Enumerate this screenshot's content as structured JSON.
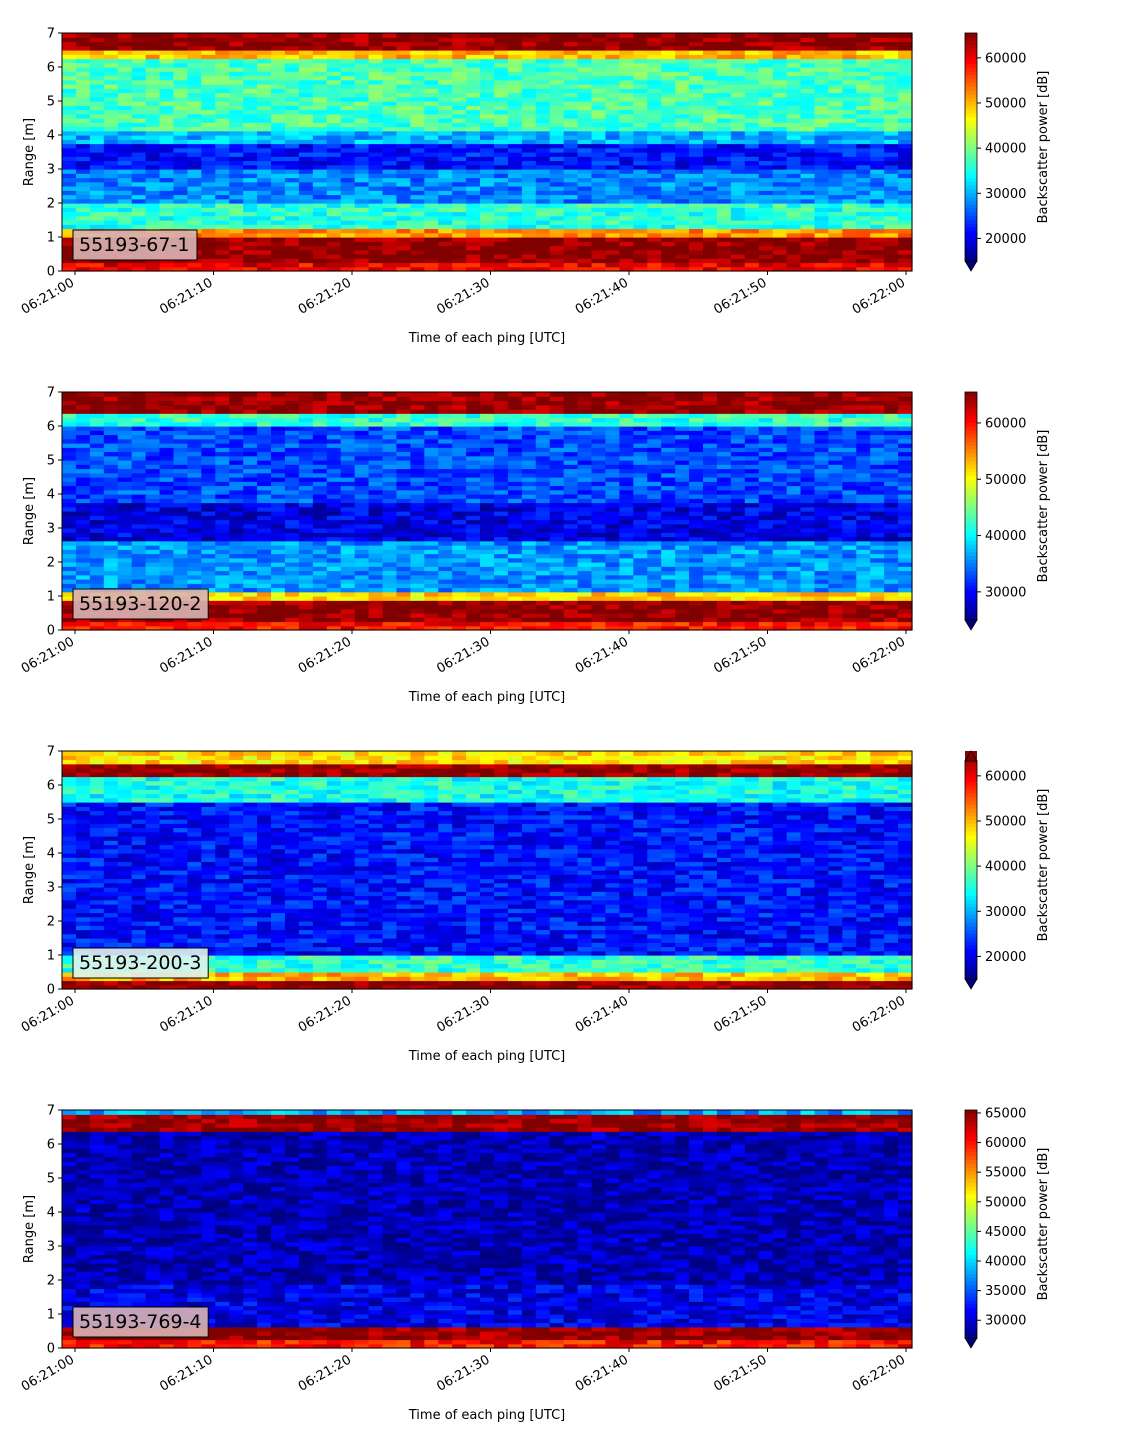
{
  "chart_data": [
    {
      "type": "heatmap",
      "label": "55193-67-1",
      "xlabel": "Time of each ping [UTC]",
      "ylabel": "Range [m]",
      "x_range": [
        "06:21:00",
        "06:22:00"
      ],
      "ylim": [
        0,
        7
      ],
      "x_ticks": [
        "06:21:00",
        "06:21:10",
        "06:21:20",
        "06:21:30",
        "06:21:40",
        "06:21:50",
        "06:22:00"
      ],
      "y_ticks": [
        "0",
        "1",
        "2",
        "3",
        "4",
        "5",
        "6",
        "7"
      ],
      "colorbar": {
        "label": "Backscatter power [dB]",
        "min": 15000,
        "max": 65500,
        "ticks": [
          "20000",
          "30000",
          "40000",
          "50000",
          "60000"
        ],
        "tick_values": [
          20000,
          30000,
          40000,
          50000,
          60000
        ],
        "extend": "min"
      },
      "range_profile": [
        {
          "from": 0.0,
          "to": 0.25,
          "value": 60000
        },
        {
          "from": 0.25,
          "to": 1.0,
          "value": 65000
        },
        {
          "from": 1.0,
          "to": 1.2,
          "value": 52000
        },
        {
          "from": 1.2,
          "to": 2.0,
          "value": 36000
        },
        {
          "from": 2.0,
          "to": 3.0,
          "value": 28000
        },
        {
          "from": 3.0,
          "to": 3.8,
          "value": 22000
        },
        {
          "from": 3.8,
          "to": 4.1,
          "value": 30000
        },
        {
          "from": 4.1,
          "to": 6.2,
          "value": 37500
        },
        {
          "from": 6.2,
          "to": 6.45,
          "value": 50000
        },
        {
          "from": 6.45,
          "to": 7.0,
          "value": 65000
        }
      ]
    },
    {
      "type": "heatmap",
      "label": "55193-120-2",
      "xlabel": "Time of each ping [UTC]",
      "ylabel": "Range [m]",
      "x_range": [
        "06:21:00",
        "06:22:00"
      ],
      "ylim": [
        0,
        7
      ],
      "x_ticks": [
        "06:21:00",
        "06:21:10",
        "06:21:20",
        "06:21:30",
        "06:21:40",
        "06:21:50",
        "06:22:00"
      ],
      "y_ticks": [
        "0",
        "1",
        "2",
        "3",
        "4",
        "5",
        "6",
        "7"
      ],
      "colorbar": {
        "label": "Backscatter power [dB]",
        "min": 25000,
        "max": 65500,
        "ticks": [
          "30000",
          "40000",
          "50000",
          "60000"
        ],
        "tick_values": [
          30000,
          40000,
          50000,
          60000
        ],
        "extend": "min"
      },
      "range_profile": [
        {
          "from": 0.0,
          "to": 0.25,
          "value": 60000
        },
        {
          "from": 0.25,
          "to": 0.85,
          "value": 65000
        },
        {
          "from": 0.85,
          "to": 1.1,
          "value": 52000
        },
        {
          "from": 1.1,
          "to": 2.6,
          "value": 36000
        },
        {
          "from": 2.6,
          "to": 3.8,
          "value": 29000
        },
        {
          "from": 3.8,
          "to": 6.0,
          "value": 33000
        },
        {
          "from": 6.0,
          "to": 6.4,
          "value": 42000
        },
        {
          "from": 6.4,
          "to": 7.0,
          "value": 65000
        }
      ]
    },
    {
      "type": "heatmap",
      "label": "55193-200-3",
      "xlabel": "Time of each ping [UTC]",
      "ylabel": "Range [m]",
      "x_range": [
        "06:21:00",
        "06:22:00"
      ],
      "ylim": [
        0,
        7
      ],
      "x_ticks": [
        "06:21:00",
        "06:21:10",
        "06:21:20",
        "06:21:30",
        "06:21:40",
        "06:21:50",
        "06:22:00"
      ],
      "y_ticks": [
        "0",
        "1",
        "2",
        "3",
        "4",
        "5",
        "6",
        "7"
      ],
      "colorbar": {
        "label": "Backscatter power [dB]",
        "min": 15000,
        "max": 65500,
        "ticks": [
          "20000",
          "30000",
          "40000",
          "50000",
          "60000"
        ],
        "tick_values": [
          20000,
          30000,
          40000,
          50000,
          60000
        ],
        "extend": "both"
      },
      "range_profile": [
        {
          "from": 0.0,
          "to": 0.3,
          "value": 65000
        },
        {
          "from": 0.3,
          "to": 0.5,
          "value": 50000
        },
        {
          "from": 0.5,
          "to": 1.0,
          "value": 36000
        },
        {
          "from": 1.0,
          "to": 5.5,
          "value": 22000
        },
        {
          "from": 5.5,
          "to": 6.2,
          "value": 35000
        },
        {
          "from": 6.2,
          "to": 6.6,
          "value": 65000
        },
        {
          "from": 6.6,
          "to": 7.0,
          "value": 48000
        }
      ]
    },
    {
      "type": "heatmap",
      "label": "55193-769-4",
      "xlabel": "Time of each ping [UTC]",
      "ylabel": "Range [m]",
      "x_range": [
        "06:21:00",
        "06:22:00"
      ],
      "ylim": [
        0,
        7
      ],
      "x_ticks": [
        "06:21:00",
        "06:21:10",
        "06:21:20",
        "06:21:30",
        "06:21:40",
        "06:21:50",
        "06:22:00"
      ],
      "y_ticks": [
        "0",
        "1",
        "2",
        "3",
        "4",
        "5",
        "6",
        "7"
      ],
      "colorbar": {
        "label": "Backscatter power [dB]",
        "min": 27000,
        "max": 65500,
        "ticks": [
          "30000",
          "35000",
          "40000",
          "45000",
          "50000",
          "55000",
          "60000",
          "65000"
        ],
        "tick_values": [
          30000,
          35000,
          40000,
          45000,
          50000,
          55000,
          60000,
          65000
        ],
        "extend": "min"
      },
      "range_profile": [
        {
          "from": 0.0,
          "to": 0.25,
          "value": 60000
        },
        {
          "from": 0.25,
          "to": 0.65,
          "value": 65000
        },
        {
          "from": 0.65,
          "to": 1.9,
          "value": 31000
        },
        {
          "from": 1.9,
          "to": 6.4,
          "value": 29000
        },
        {
          "from": 6.4,
          "to": 6.85,
          "value": 65000
        },
        {
          "from": 6.85,
          "to": 7.0,
          "value": 38000
        }
      ]
    }
  ]
}
